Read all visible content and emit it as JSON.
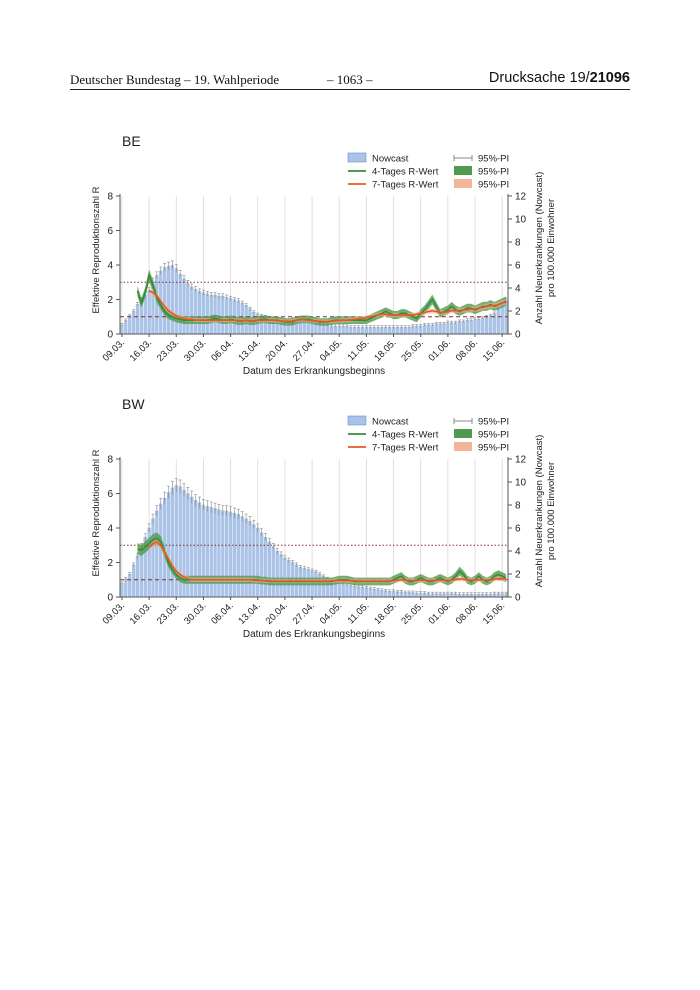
{
  "header": {
    "left": "Deutscher Bundestag – 19. Wahlperiode",
    "center": "– 1063 –",
    "right_prefix": "Drucksache",
    "right_number_a": "19/",
    "right_number_b": "21096"
  },
  "chart_data": [
    {
      "type": "bar",
      "title": "BE",
      "xlabel": "Datum des Erkrankungsbeginns",
      "ylabel_left": "Effektive Reproduktionszahl R",
      "ylabel_right_1": "Anzahl Neuerkrankungen (Nowcast)",
      "ylabel_right_2": "pro 100.000 Einwohner",
      "ylim_left": [
        0,
        8
      ],
      "ylim_right": [
        0,
        12
      ],
      "yticks_left": [
        "0",
        "2",
        "4",
        "6",
        "8"
      ],
      "yticks_right": [
        "0",
        "2",
        "4",
        "6",
        "8",
        "10",
        "12"
      ],
      "x_ticks": [
        "09.03.",
        "16.03.",
        "23.03.",
        "30.03.",
        "06.04.",
        "13.04.",
        "20.04.",
        "27.04.",
        "04.05.",
        "11.05.",
        "18.05.",
        "25.05.",
        "01.06.",
        "08.06.",
        "15.06."
      ],
      "reference_lines": {
        "dashed": 1,
        "dotted": 3
      },
      "legend": [
        {
          "label": "Nowcast",
          "kind": "bar",
          "color": "#a9c4e8"
        },
        {
          "label": "4-Tages R-Wert",
          "kind": "line",
          "color": "#3a8a3a"
        },
        {
          "label": "7-Tages R-Wert",
          "kind": "line",
          "color": "#e8581e"
        },
        {
          "label": "95%-PI",
          "kind": "errorbar",
          "color": "#888888"
        },
        {
          "label": "95%-PI",
          "kind": "band",
          "color": "#4f9a4f"
        },
        {
          "label": "95%-PI",
          "kind": "band",
          "color": "#f4b49a"
        }
      ],
      "series": [
        {
          "name": "Nowcast",
          "axis": "right",
          "values": [
            0.8,
            1.2,
            1.6,
            2.0,
            2.6,
            3.0,
            3.4,
            3.8,
            4.6,
            5.1,
            5.5,
            5.8,
            5.9,
            6.0,
            5.7,
            5.2,
            4.8,
            4.4,
            4.1,
            3.9,
            3.7,
            3.6,
            3.5,
            3.4,
            3.4,
            3.3,
            3.3,
            3.2,
            3.1,
            3.0,
            2.9,
            2.7,
            2.5,
            2.2,
            1.9,
            1.7,
            1.6,
            1.5,
            1.4,
            1.3,
            1.3,
            1.2,
            1.2,
            1.2,
            1.3,
            1.3,
            1.3,
            1.2,
            1.2,
            1.1,
            1.0,
            0.9,
            0.8,
            0.8,
            0.7,
            0.7,
            0.7,
            0.7,
            0.7,
            0.6,
            0.6,
            0.6,
            0.6,
            0.6,
            0.6,
            0.6,
            0.6,
            0.6,
            0.6,
            0.6,
            0.6,
            0.6,
            0.6,
            0.6,
            0.6,
            0.7,
            0.7,
            0.7,
            0.8,
            0.8,
            0.8,
            0.9,
            0.9,
            0.9,
            1.0,
            1.0,
            1.0,
            1.1,
            1.1,
            1.2,
            1.2,
            1.3,
            1.3,
            1.4,
            1.5,
            1.6,
            1.8,
            2.2,
            2.6,
            2.9
          ]
        },
        {
          "name": "4-Tages R-Wert",
          "axis": "left",
          "values": [
            null,
            null,
            null,
            null,
            2.5,
            1.8,
            2.4,
            3.4,
            2.8,
            2.1,
            1.7,
            1.3,
            1.1,
            1.0,
            0.9,
            0.85,
            0.8,
            0.8,
            0.8,
            0.8,
            0.8,
            0.8,
            0.8,
            0.85,
            0.9,
            0.85,
            0.8,
            0.8,
            0.85,
            0.8,
            0.75,
            0.75,
            0.8,
            0.75,
            0.75,
            0.8,
            0.85,
            0.85,
            0.8,
            0.8,
            0.8,
            0.75,
            0.7,
            0.7,
            0.7,
            0.8,
            0.85,
            0.85,
            0.85,
            0.8,
            0.75,
            0.7,
            0.7,
            0.7,
            0.75,
            0.8,
            0.8,
            0.8,
            0.8,
            0.8,
            0.8,
            0.8,
            0.8,
            0.8,
            0.9,
            1.0,
            1.1,
            1.2,
            1.3,
            1.2,
            1.1,
            1.1,
            1.2,
            1.2,
            1.1,
            1.0,
            0.9,
            1.2,
            1.4,
            1.7,
            2.0,
            1.6,
            1.2,
            1.3,
            1.4,
            1.6,
            1.4,
            1.3,
            1.4,
            1.5,
            1.5,
            1.4,
            1.5,
            1.6,
            1.6,
            1.7,
            1.6,
            1.7,
            1.8,
            1.9
          ]
        },
        {
          "name": "7-Tages R-Wert",
          "axis": "left",
          "values": [
            null,
            null,
            null,
            null,
            null,
            null,
            null,
            2.5,
            2.4,
            2.2,
            1.9,
            1.6,
            1.35,
            1.2,
            1.05,
            0.95,
            0.9,
            0.85,
            0.85,
            0.8,
            0.8,
            0.8,
            0.8,
            0.8,
            0.8,
            0.8,
            0.8,
            0.8,
            0.8,
            0.8,
            0.78,
            0.78,
            0.78,
            0.78,
            0.78,
            0.8,
            0.8,
            0.8,
            0.8,
            0.8,
            0.78,
            0.76,
            0.74,
            0.74,
            0.76,
            0.8,
            0.82,
            0.82,
            0.8,
            0.78,
            0.75,
            0.74,
            0.72,
            0.72,
            0.74,
            0.76,
            0.78,
            0.8,
            0.8,
            0.82,
            0.85,
            0.88,
            0.9,
            0.95,
            1.0,
            1.05,
            1.1,
            1.15,
            1.15,
            1.1,
            1.1,
            1.1,
            1.1,
            1.1,
            1.1,
            1.1,
            1.15,
            1.2,
            1.25,
            1.3,
            1.35,
            1.3,
            1.25,
            1.25,
            1.3,
            1.35,
            1.35,
            1.35,
            1.4,
            1.4,
            1.45,
            1.45,
            1.5,
            1.55,
            1.6,
            1.65,
            1.65,
            1.7,
            1.8,
            1.85
          ]
        }
      ]
    },
    {
      "type": "bar",
      "title": "BW",
      "xlabel": "Datum des Erkrankungsbeginns",
      "ylabel_left": "Effektive Reproduktionszahl R",
      "ylabel_right_1": "Anzahl Neuerkrankungen (Nowcast)",
      "ylabel_right_2": "pro 100.000 Einwohner",
      "ylim_left": [
        0,
        8
      ],
      "ylim_right": [
        0,
        12
      ],
      "yticks_left": [
        "0",
        "2",
        "4",
        "6",
        "8"
      ],
      "yticks_right": [
        "0",
        "2",
        "4",
        "6",
        "8",
        "10",
        "12"
      ],
      "x_ticks": [
        "09.03.",
        "16.03.",
        "23.03.",
        "30.03.",
        "06.04.",
        "13.04.",
        "20.04.",
        "27.04.",
        "04.05.",
        "11.05.",
        "18.05.",
        "25.05.",
        "01.06.",
        "08.06.",
        "15.06."
      ],
      "reference_lines": {
        "dashed": 1,
        "dotted": 3
      },
      "legend": [
        {
          "label": "Nowcast",
          "kind": "bar",
          "color": "#a9c4e8"
        },
        {
          "label": "4-Tages R-Wert",
          "kind": "line",
          "color": "#3a8a3a"
        },
        {
          "label": "7-Tages R-Wert",
          "kind": "line",
          "color": "#e8581e"
        },
        {
          "label": "95%-PI",
          "kind": "errorbar",
          "color": "#888888"
        },
        {
          "label": "95%-PI",
          "kind": "band",
          "color": "#4f9a4f"
        },
        {
          "label": "95%-PI",
          "kind": "band",
          "color": "#f4b49a"
        }
      ],
      "series": [
        {
          "name": "Nowcast",
          "axis": "right",
          "values": [
            1.2,
            1.6,
            2.0,
            2.8,
            3.6,
            4.4,
            5.2,
            6.0,
            6.8,
            7.5,
            8.1,
            8.6,
            9.1,
            9.5,
            9.7,
            9.6,
            9.3,
            9.0,
            8.7,
            8.4,
            8.2,
            8.0,
            7.9,
            7.8,
            7.7,
            7.6,
            7.5,
            7.5,
            7.4,
            7.3,
            7.2,
            7.0,
            6.8,
            6.6,
            6.3,
            6.0,
            5.6,
            5.2,
            4.8,
            4.4,
            4.0,
            3.7,
            3.4,
            3.2,
            3.0,
            2.8,
            2.6,
            2.5,
            2.4,
            2.3,
            2.2,
            2.0,
            1.8,
            1.6,
            1.5,
            1.4,
            1.3,
            1.2,
            1.1,
            1.0,
            0.95,
            0.9,
            0.85,
            0.8,
            0.75,
            0.7,
            0.65,
            0.6,
            0.55,
            0.5,
            0.5,
            0.45,
            0.45,
            0.4,
            0.4,
            0.4,
            0.35,
            0.35,
            0.35,
            0.3,
            0.3,
            0.3,
            0.3,
            0.3,
            0.3,
            0.3,
            0.3,
            0.25,
            0.25,
            0.25,
            0.25,
            0.25,
            0.25,
            0.25,
            0.25,
            0.25,
            0.3,
            0.3,
            0.3,
            0.3
          ]
        },
        {
          "name": "4-Tages R-Wert",
          "axis": "left",
          "values": [
            null,
            null,
            null,
            null,
            2.8,
            2.7,
            2.9,
            3.1,
            3.3,
            3.4,
            3.2,
            2.6,
            2.0,
            1.6,
            1.3,
            1.1,
            1.0,
            1.0,
            1.0,
            1.0,
            1.0,
            1.0,
            1.0,
            1.0,
            1.0,
            1.0,
            1.0,
            1.0,
            1.0,
            1.0,
            1.0,
            1.0,
            1.0,
            1.0,
            1.0,
            1.0,
            0.95,
            0.95,
            0.9,
            0.9,
            0.9,
            0.9,
            0.9,
            0.9,
            0.9,
            0.9,
            0.9,
            0.9,
            0.9,
            0.9,
            0.9,
            0.9,
            0.9,
            0.9,
            0.9,
            0.95,
            1.0,
            1.0,
            1.0,
            0.95,
            0.9,
            0.9,
            0.9,
            0.9,
            0.9,
            0.9,
            0.9,
            0.9,
            0.9,
            0.9,
            1.0,
            1.1,
            1.2,
            1.0,
            0.9,
            0.9,
            1.0,
            1.1,
            1.0,
            0.9,
            0.9,
            1.0,
            1.1,
            1.0,
            0.9,
            1.0,
            1.2,
            1.5,
            1.3,
            1.0,
            0.9,
            1.0,
            1.2,
            1.0,
            0.9,
            1.0,
            1.2,
            1.3,
            1.2,
            1.1
          ]
        },
        {
          "name": "7-Tages R-Wert",
          "axis": "left",
          "values": [
            null,
            null,
            null,
            null,
            null,
            null,
            null,
            2.9,
            3.1,
            3.2,
            3.0,
            2.6,
            2.2,
            1.8,
            1.5,
            1.3,
            1.15,
            1.05,
            1.0,
            1.0,
            1.0,
            1.0,
            1.0,
            1.0,
            1.0,
            1.0,
            1.0,
            1.0,
            1.0,
            1.0,
            1.0,
            1.0,
            1.0,
            1.0,
            0.98,
            0.96,
            0.95,
            0.94,
            0.93,
            0.92,
            0.92,
            0.92,
            0.92,
            0.92,
            0.92,
            0.92,
            0.92,
            0.92,
            0.92,
            0.92,
            0.92,
            0.92,
            0.92,
            0.92,
            0.93,
            0.95,
            0.96,
            0.96,
            0.95,
            0.94,
            0.93,
            0.92,
            0.92,
            0.92,
            0.92,
            0.92,
            0.92,
            0.92,
            0.92,
            0.93,
            0.95,
            0.98,
            1.0,
            0.98,
            0.96,
            0.95,
            0.96,
            0.98,
            0.97,
            0.95,
            0.95,
            0.96,
            0.98,
            0.97,
            0.96,
            0.98,
            1.02,
            1.05,
            1.03,
            1.0,
            0.98,
            0.98,
            1.0,
            0.99,
            0.98,
            1.0,
            1.03,
            1.06,
            1.06,
            1.05
          ]
        }
      ]
    }
  ]
}
